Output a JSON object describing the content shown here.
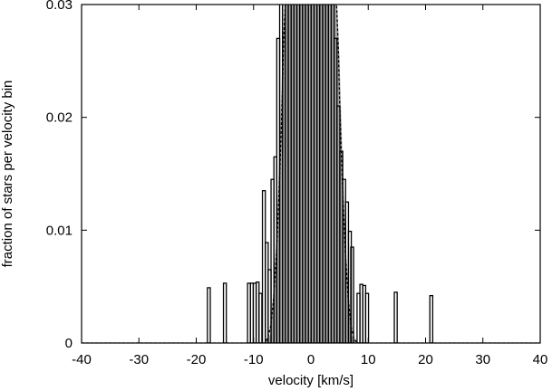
{
  "chart_data": {
    "type": "bar",
    "title": "",
    "xlabel": "velocity [km/s]",
    "ylabel": "fraction of stars per velocity bin",
    "xlim": [
      -40,
      40
    ],
    "ylim": [
      0,
      0.03
    ],
    "x_ticks": [
      "-40",
      "-30",
      "-20",
      "-10",
      "0",
      "10",
      "20",
      "30",
      "40"
    ],
    "y_ticks": [
      "0",
      "0.01",
      "0.02",
      "0.03"
    ],
    "grid": false,
    "legend": "none",
    "colors": {
      "histogram": "#000000",
      "model": "#a9a9a9",
      "fit": "#000000"
    },
    "series": [
      {
        "kind": "histogram",
        "bin_width": 0.5,
        "x": [
          -17.8,
          -15.0,
          -10.8,
          -10.3,
          -9.8,
          -9.3,
          -8.8,
          -8.2,
          -7.7,
          -7.2,
          -6.7,
          -6.2,
          -5.7,
          -5.2,
          -4.7,
          -4.2,
          -3.7,
          -3.2,
          -2.7,
          -2.2,
          -1.7,
          -1.2,
          -0.7,
          -0.2,
          0.3,
          0.8,
          1.3,
          1.8,
          2.3,
          2.8,
          3.3,
          3.8,
          4.3,
          4.8,
          5.3,
          5.8,
          6.3,
          6.8,
          7.2,
          8.3,
          8.8,
          9.3,
          9.8,
          14.8,
          21.0
        ],
        "y": [
          0.0049,
          0.0053,
          0.0053,
          0.0053,
          0.0053,
          0.0054,
          0.0044,
          0.0135,
          0.0089,
          0.0065,
          0.0145,
          0.0165,
          0.027,
          0.031,
          0.031,
          0.031,
          0.031,
          0.031,
          0.031,
          0.031,
          0.031,
          0.031,
          0.031,
          0.031,
          0.031,
          0.031,
          0.031,
          0.031,
          0.031,
          0.031,
          0.031,
          0.031,
          0.027,
          0.021,
          0.017,
          0.0145,
          0.0125,
          0.0099,
          0.0085,
          0.0044,
          0.0052,
          0.0051,
          0.0044,
          0.0045,
          0.0042
        ]
      },
      {
        "kind": "area",
        "x": [
          -40,
          -8,
          -7,
          -6,
          -5.5,
          -5,
          -4.5,
          4.5,
          5,
          5.5,
          6,
          7,
          8,
          40
        ],
        "y": [
          0,
          0,
          0.0008,
          0.0095,
          0.0165,
          0.025,
          0.031,
          0.031,
          0.025,
          0.0165,
          0.0095,
          0.0008,
          0,
          0
        ]
      },
      {
        "kind": "line",
        "style": "dashed",
        "x": [
          -40,
          -8,
          -7.5,
          -7,
          -6.5,
          -6,
          -5.5,
          -5,
          -4.8,
          -4.4,
          4.4,
          4.8,
          5,
          5.5,
          6,
          6.5,
          7,
          7.5,
          8,
          40
        ],
        "y": [
          0,
          0,
          0.0005,
          0.0015,
          0.004,
          0.008,
          0.014,
          0.0215,
          0.026,
          0.031,
          0.031,
          0.026,
          0.0215,
          0.014,
          0.008,
          0.004,
          0.0015,
          0.0005,
          0,
          0
        ]
      }
    ]
  }
}
